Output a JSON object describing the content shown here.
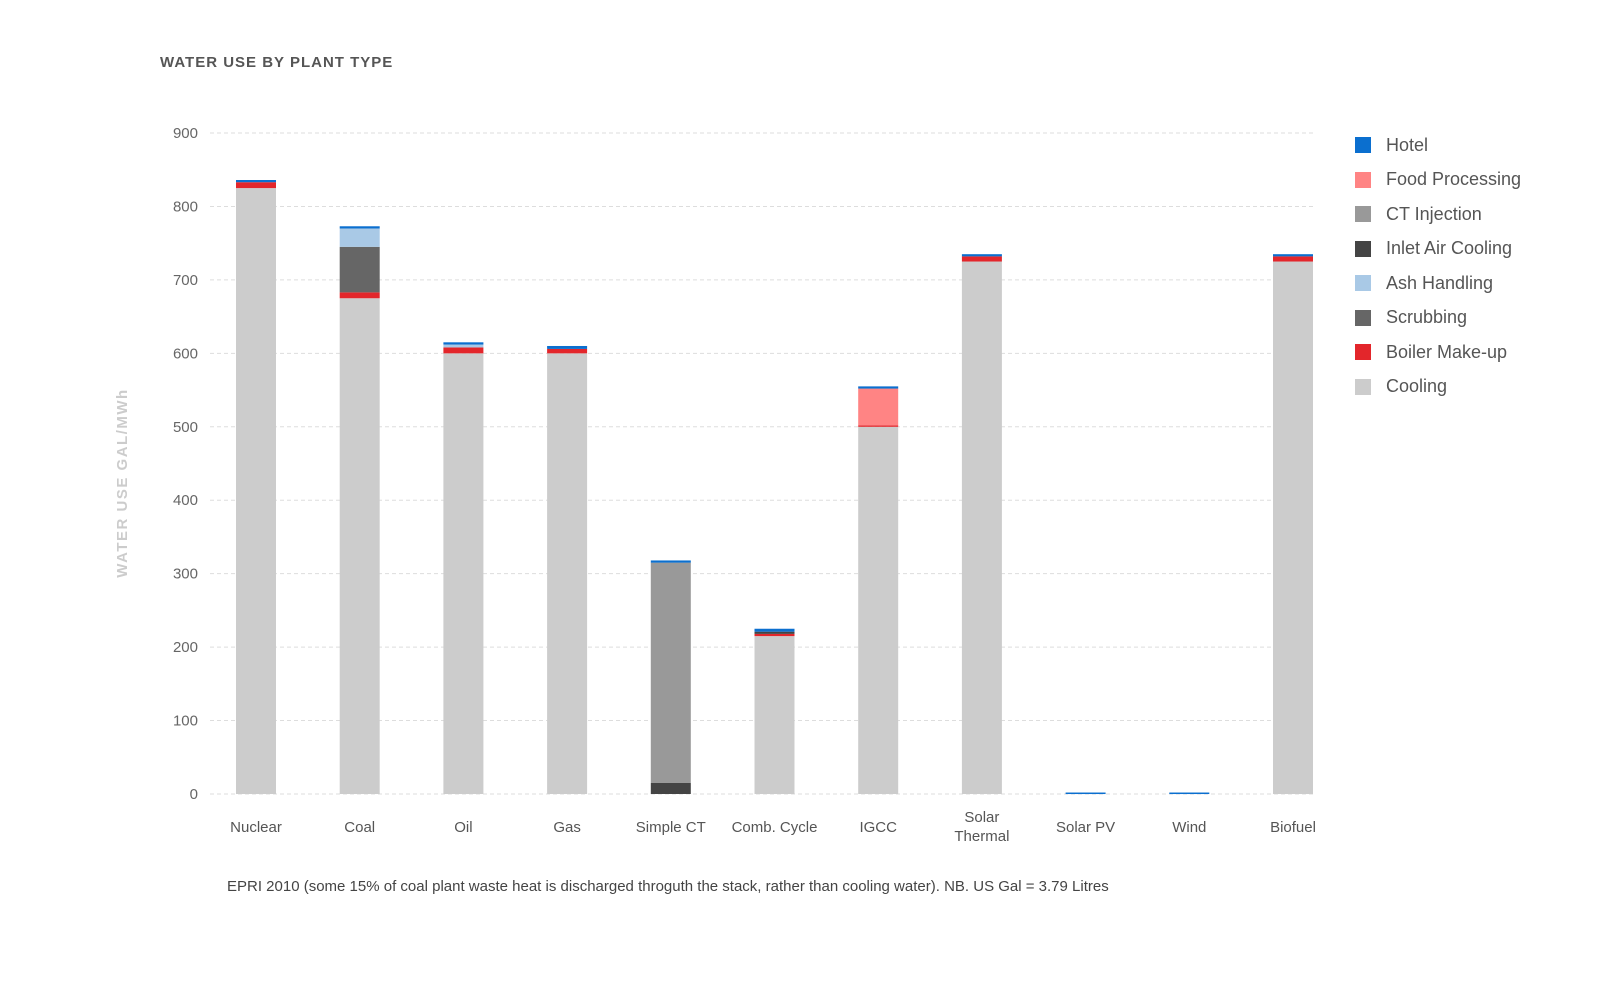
{
  "title": "WATER USE BY PLANT TYPE",
  "note": "EPRI 2010 (some 15% of coal plant waste heat is discharged throguth the stack, rather than cooling water). NB. US Gal = 3.79 Litres",
  "chart_data": {
    "type": "bar",
    "stacked": true,
    "ylabel": "WATER USE GAL/MWh",
    "ylim": [
      0,
      900
    ],
    "yticks": [
      0,
      100,
      200,
      300,
      400,
      500,
      600,
      700,
      800,
      900
    ],
    "grid": true,
    "legend_position": "right",
    "categories": [
      "Nuclear",
      "Coal",
      "Oil",
      "Gas",
      "Simple CT",
      "Comb. Cycle",
      "IGCC",
      "Solar Thermal",
      "Solar PV",
      "Wind",
      "Biofuel"
    ],
    "category_lines": [
      [
        "Nuclear"
      ],
      [
        "Coal"
      ],
      [
        "Oil"
      ],
      [
        "Gas"
      ],
      [
        "Simple CT"
      ],
      [
        "Comb. Cycle"
      ],
      [
        "IGCC"
      ],
      [
        "Solar",
        "Thermal"
      ],
      [
        "Solar PV"
      ],
      [
        "Wind"
      ],
      [
        "Biofuel"
      ]
    ],
    "series": [
      {
        "name": "Cooling",
        "color": "#cccccc",
        "values": [
          825,
          675,
          600,
          600,
          0,
          215,
          500,
          725,
          0,
          0,
          725
        ]
      },
      {
        "name": "Boiler Make-up",
        "color": "#e3262b",
        "values": [
          8,
          8,
          8,
          6,
          0,
          3,
          2,
          7,
          0,
          0,
          7
        ]
      },
      {
        "name": "Scrubbing",
        "color": "#666666",
        "values": [
          0,
          62,
          0,
          0,
          0,
          0,
          0,
          0,
          0,
          0,
          0
        ]
      },
      {
        "name": "Ash Handling",
        "color": "#a9c9e6",
        "values": [
          0,
          25,
          4,
          0,
          0,
          0,
          0,
          0,
          0,
          0,
          0
        ]
      },
      {
        "name": "Inlet Air Cooling",
        "color": "#444444",
        "values": [
          0,
          0,
          0,
          0,
          15,
          3,
          0,
          0,
          0,
          0,
          0
        ]
      },
      {
        "name": "CT Injection",
        "color": "#999999",
        "values": [
          0,
          0,
          0,
          0,
          300,
          0,
          0,
          0,
          0,
          0,
          0
        ]
      },
      {
        "name": "Food Processing",
        "color": "#ff8484",
        "values": [
          0,
          0,
          0,
          0,
          0,
          0,
          50,
          0,
          0,
          0,
          0
        ]
      },
      {
        "name": "Hotel",
        "color": "#0b6fcf",
        "values": [
          3,
          3,
          3,
          4,
          3,
          4,
          3,
          3,
          2,
          2,
          3
        ]
      }
    ],
    "legend_order": [
      "Hotel",
      "Food Processing",
      "CT Injection",
      "Inlet Air Cooling",
      "Ash Handling",
      "Scrubbing",
      "Boiler Make-up",
      "Cooling"
    ]
  }
}
